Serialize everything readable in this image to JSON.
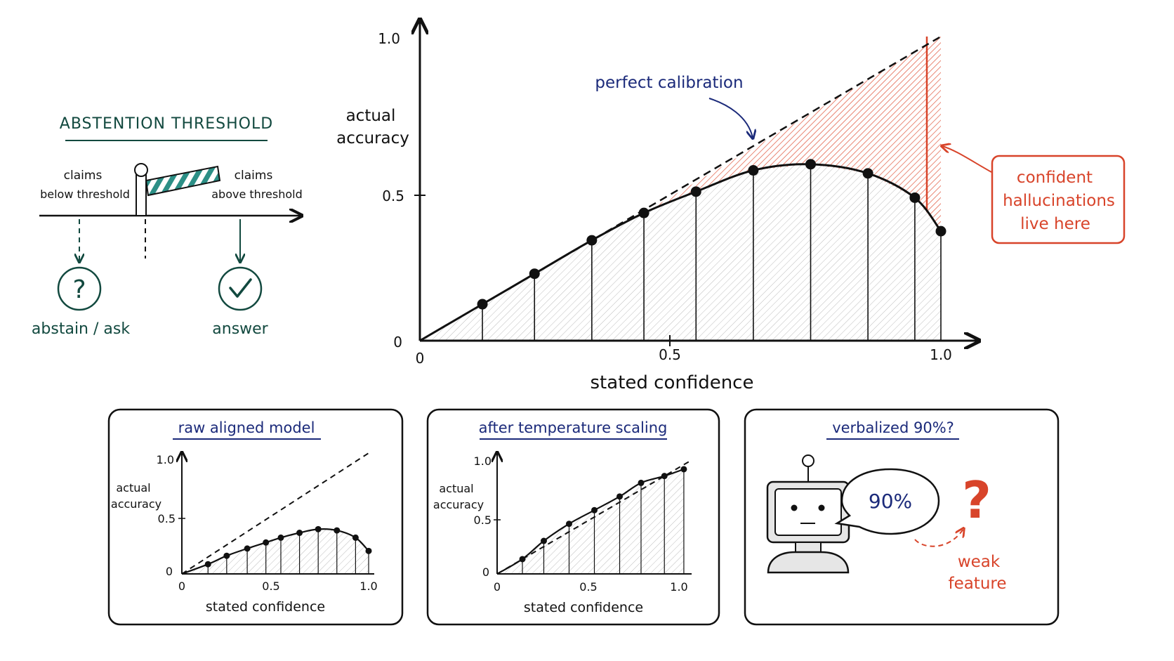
{
  "threshold": {
    "title": "ABSTENTION THRESHOLD",
    "left_label_line1": "claims",
    "left_label_line2": "below threshold",
    "right_label_line1": "claims",
    "right_label_line2": "above threshold",
    "abstain_label": "abstain / ask",
    "answer_label": "answer",
    "abstain_icon": "question-circle-icon",
    "answer_icon": "check-circle-icon",
    "color": "#12493f"
  },
  "main_chart": {
    "ylabel_line1": "actual",
    "ylabel_line2": "accuracy",
    "xlabel": "stated confidence",
    "perfect_label": "perfect calibration",
    "gap_label_line1": "confident",
    "gap_label_line2": "hallucinations",
    "gap_label_line3": "live here",
    "y_ticks": [
      "1.0",
      "0.5",
      "0"
    ],
    "x_ticks": [
      "0",
      "0.5",
      "1.0"
    ],
    "colors": {
      "ink": "#111111",
      "annotation": "#1b2a7a",
      "gap": "#d8442a"
    }
  },
  "panels": {
    "raw": {
      "title": "raw aligned model",
      "ylabel_line1": "actual",
      "ylabel_line2": "accuracy",
      "xlabel": "stated confidence",
      "y_ticks": [
        "1.0",
        "0.5",
        "0"
      ],
      "x_ticks": [
        "0",
        "0.5",
        "1.0"
      ]
    },
    "temp": {
      "title": "after temperature scaling",
      "ylabel_line1": "actual",
      "ylabel_line2": "accuracy",
      "xlabel": "stated confidence",
      "y_ticks": [
        "1.0",
        "0.5",
        "0"
      ],
      "x_ticks": [
        "0",
        "0.5",
        "1.0"
      ]
    },
    "verbal": {
      "title": "verbalized 90%?",
      "bubble_text": "90%",
      "question_mark": "?",
      "weak_line1": "weak",
      "weak_line2": "feature",
      "robot_icon": "robot-icon"
    }
  },
  "chart_data": [
    {
      "type": "line",
      "id": "main",
      "xlim": [
        0,
        1.0
      ],
      "ylim": [
        0,
        1.0
      ],
      "x": [
        0,
        0.12,
        0.22,
        0.33,
        0.43,
        0.53,
        0.64,
        0.75,
        0.86,
        0.95,
        1.0
      ],
      "y": [
        0,
        0.12,
        0.22,
        0.33,
        0.42,
        0.49,
        0.56,
        0.58,
        0.55,
        0.47,
        0.36
      ],
      "markers": [
        0.12,
        0.22,
        0.33,
        0.43,
        0.53,
        0.64,
        0.75,
        0.86,
        0.95,
        1.0
      ],
      "reference": {
        "x": [
          0,
          1.0
        ],
        "y": [
          0,
          1.0
        ],
        "style": "dashed"
      }
    },
    {
      "type": "line",
      "id": "raw",
      "xlim": [
        0,
        1.0
      ],
      "ylim": [
        0,
        1.0
      ],
      "x": [
        0,
        0.14,
        0.24,
        0.35,
        0.45,
        0.53,
        0.63,
        0.73,
        0.83,
        0.93,
        1.0
      ],
      "y": [
        0,
        0.08,
        0.15,
        0.21,
        0.26,
        0.3,
        0.34,
        0.37,
        0.36,
        0.3,
        0.19
      ],
      "markers": [
        0.14,
        0.24,
        0.35,
        0.45,
        0.53,
        0.63,
        0.73,
        0.83,
        0.93,
        1.0
      ],
      "reference": {
        "x": [
          0,
          1.0
        ],
        "y": [
          0,
          1.0
        ],
        "style": "dashed"
      }
    },
    {
      "type": "line",
      "id": "temp",
      "xlim": [
        0,
        1.0
      ],
      "ylim": [
        0,
        1.0
      ],
      "x": [
        0,
        0.13,
        0.24,
        0.37,
        0.5,
        0.63,
        0.74,
        0.86,
        0.96
      ],
      "y": [
        0,
        0.13,
        0.29,
        0.44,
        0.56,
        0.68,
        0.8,
        0.86,
        0.92
      ],
      "markers": [
        0.13,
        0.24,
        0.37,
        0.5,
        0.63,
        0.74,
        0.86,
        0.96
      ],
      "reference": {
        "x": [
          0,
          1.0
        ],
        "y": [
          0,
          1.0
        ],
        "style": "dashed"
      }
    }
  ]
}
